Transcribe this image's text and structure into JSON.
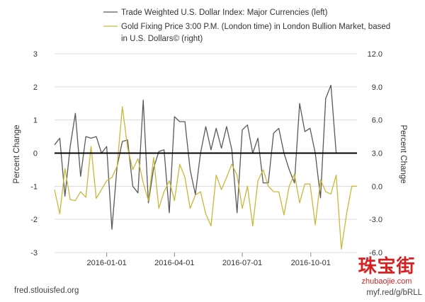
{
  "chart_data": {
    "type": "line",
    "legend": {
      "placement": "top",
      "entries": [
        "Trade Weighted U.S. Dollar Index: Major Currencies (left)",
        "Gold Fixing Price 3:00 P.M. (London time) in London Bullion Market, based in U.S. Dollars© (right)"
      ]
    },
    "ylabel_left": "Percent Change",
    "ylabel_right": "Percent Change",
    "y_left": {
      "min": -3,
      "max": 3,
      "ticks": [
        "-3",
        "-2",
        "-1",
        "0",
        "1",
        "2",
        "3"
      ]
    },
    "y_right": {
      "min": -6,
      "max": 12,
      "ticks": [
        "-6.0",
        "-3.0",
        "0.0",
        "3.0",
        "6.0",
        "9.0",
        "12.0"
      ]
    },
    "x_range": [
      "2015-10-23",
      "2016-12-02"
    ],
    "x_ticks": [
      {
        "date": "2016-01-01",
        "label": "2016-01-01"
      },
      {
        "date": "2016-04-01",
        "label": "2016-04-01"
      },
      {
        "date": "2016-07-01",
        "label": "2016-07-01"
      },
      {
        "date": "2016-10-01",
        "label": "2016-10-01"
      }
    ],
    "grid": true,
    "zero_line": true,
    "series": [
      {
        "name": "Trade Weighted U.S. Dollar Index: Major Currencies (left)",
        "axis": "left",
        "color": "#595959",
        "x": [
          "2015-10-23",
          "2015-10-30",
          "2015-11-06",
          "2015-11-13",
          "2015-11-20",
          "2015-11-27",
          "2015-12-04",
          "2015-12-11",
          "2015-12-18",
          "2015-12-25",
          "2016-01-01",
          "2016-01-08",
          "2016-01-15",
          "2016-01-22",
          "2016-01-29",
          "2016-02-05",
          "2016-02-12",
          "2016-02-19",
          "2016-02-26",
          "2016-03-04",
          "2016-03-11",
          "2016-03-18",
          "2016-03-25",
          "2016-04-01",
          "2016-04-08",
          "2016-04-15",
          "2016-04-22",
          "2016-04-29",
          "2016-05-06",
          "2016-05-13",
          "2016-05-20",
          "2016-05-27",
          "2016-06-03",
          "2016-06-10",
          "2016-06-17",
          "2016-06-24",
          "2016-07-01",
          "2016-07-08",
          "2016-07-15",
          "2016-07-22",
          "2016-07-29",
          "2016-08-05",
          "2016-08-12",
          "2016-08-19",
          "2016-08-26",
          "2016-09-02",
          "2016-09-09",
          "2016-09-16",
          "2016-09-23",
          "2016-09-30",
          "2016-10-07",
          "2016-10-14",
          "2016-10-21",
          "2016-10-28",
          "2016-11-04",
          "2016-11-11",
          "2016-11-18",
          "2016-11-25",
          "2016-12-02"
        ],
        "values": [
          0.25,
          0.45,
          -1.3,
          0.2,
          1.2,
          -0.7,
          0.5,
          0.45,
          0.5,
          0.0,
          0.2,
          -2.3,
          -0.4,
          0.35,
          0.4,
          -1.0,
          -1.2,
          1.6,
          -1.5,
          -0.45,
          0.05,
          0.1,
          -1.8,
          1.1,
          0.95,
          0.95,
          -0.5,
          -1.25,
          0.0,
          0.8,
          0.1,
          0.75,
          0.15,
          0.8,
          0.1,
          -1.8,
          0.7,
          0.85,
          0.0,
          0.45,
          -0.9,
          -0.9,
          0.6,
          0.75,
          0.0,
          -0.5,
          -0.9,
          1.5,
          0.65,
          0.75,
          0.0,
          -1.35,
          1.65,
          2.05,
          0.0,
          0.0,
          0.0,
          0.0,
          0.0
        ]
      },
      {
        "name": "Gold Fixing Price 3:00 P.M. (London time) in London Bullion Market, based in U.S. Dollars© (right)",
        "axis": "right",
        "color": "#c8b93a",
        "x": [
          "2015-10-23",
          "2015-10-30",
          "2015-11-06",
          "2015-11-13",
          "2015-11-20",
          "2015-11-27",
          "2015-12-04",
          "2015-12-11",
          "2015-12-18",
          "2015-12-25",
          "2016-01-01",
          "2016-01-08",
          "2016-01-15",
          "2016-01-22",
          "2016-01-29",
          "2016-02-05",
          "2016-02-12",
          "2016-02-19",
          "2016-02-26",
          "2016-03-04",
          "2016-03-11",
          "2016-03-18",
          "2016-03-25",
          "2016-04-01",
          "2016-04-08",
          "2016-04-15",
          "2016-04-22",
          "2016-04-29",
          "2016-05-06",
          "2016-05-13",
          "2016-05-20",
          "2016-05-27",
          "2016-06-03",
          "2016-06-10",
          "2016-06-17",
          "2016-06-24",
          "2016-07-01",
          "2016-07-08",
          "2016-07-15",
          "2016-07-22",
          "2016-07-29",
          "2016-08-05",
          "2016-08-12",
          "2016-08-19",
          "2016-08-26",
          "2016-09-02",
          "2016-09-09",
          "2016-09-16",
          "2016-09-23",
          "2016-09-30",
          "2016-10-07",
          "2016-10-14",
          "2016-10-21",
          "2016-10-28",
          "2016-11-04",
          "2016-11-11",
          "2016-11-18",
          "2016-11-25",
          "2016-12-02"
        ],
        "values": [
          -0.3,
          -2.5,
          1.6,
          -1.2,
          -1.3,
          -0.5,
          -1.0,
          3.6,
          -1.1,
          -0.3,
          0.5,
          0.8,
          1.8,
          7.2,
          3.5,
          1.5,
          2.5,
          0.3,
          -1.3,
          2.6,
          -2.0,
          -0.5,
          0.5,
          -1.3,
          2.0,
          0.8,
          -2.0,
          -0.8,
          -0.5,
          -2.5,
          -3.6,
          1.0,
          -0.3,
          0.8,
          2.0,
          1.0,
          -2.0,
          0.0,
          -3.6,
          0.5,
          1.5,
          0.0,
          -0.5,
          -0.5,
          -2.6,
          0.0,
          1.1,
          -1.5,
          0.2,
          0.2,
          -3.5,
          0.6,
          -0.5,
          -0.7,
          1.0,
          -5.7,
          -2.5,
          0.0,
          0.0
        ]
      }
    ]
  },
  "source_left": "fred.stlouisfed.org",
  "source_right": "myf.red/g/bRLL",
  "watermark_cn": "珠宝街",
  "watermark_en": "zhubaojie.com"
}
